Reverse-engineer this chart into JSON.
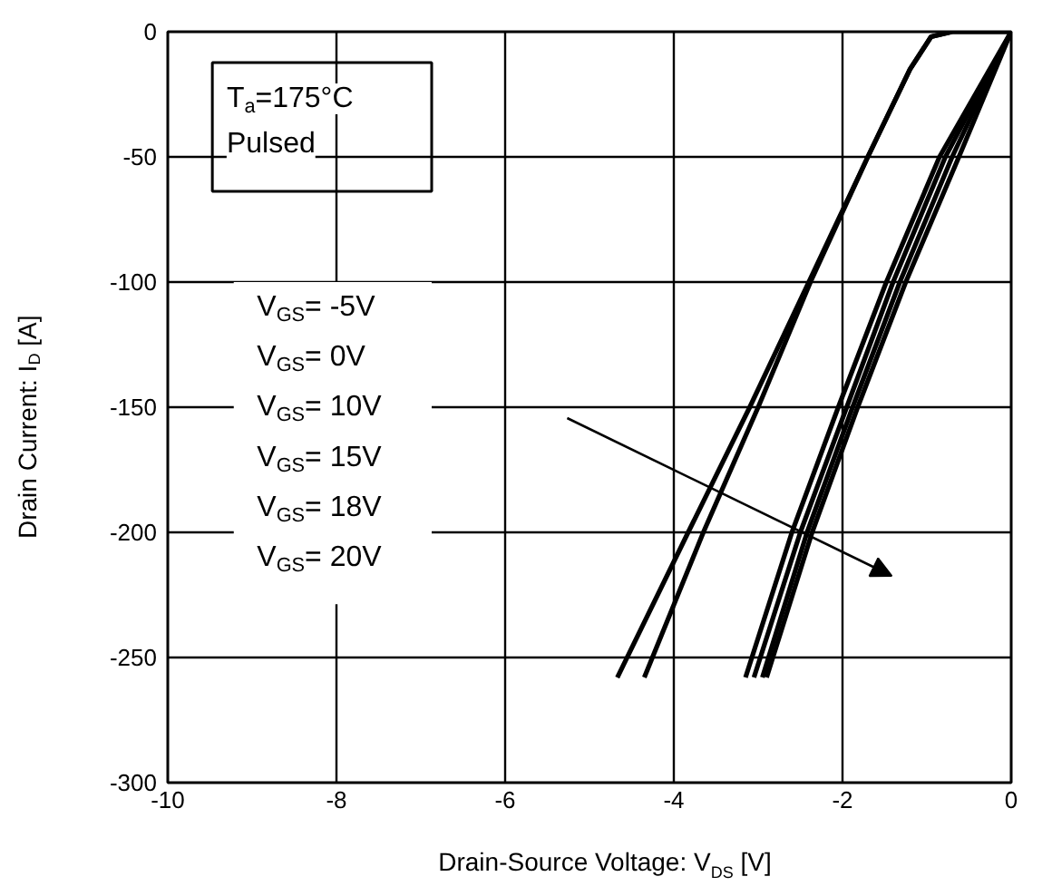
{
  "chart_data": {
    "type": "line",
    "xlabel": "Drain-Source Voltage: V$_{DS}$ [V]",
    "ylabel": "Drain Current: I$_{D}$ [A]",
    "xlim": [
      -10,
      0
    ],
    "ylim": [
      -300,
      0
    ],
    "xticks": [
      -10,
      -8,
      -6,
      -4,
      -2,
      0
    ],
    "yticks": [
      -300,
      -250,
      -200,
      -150,
      -100,
      -50,
      0
    ],
    "grid": true,
    "marker": "none",
    "line_style": "solid",
    "annotations": [
      "T$_{a}$=175°C",
      "Pulsed",
      "V$_{GS}$= -5V",
      "V$_{GS}$= 0V",
      "V$_{GS}$= 10V",
      "V$_{GS}$= 15V",
      "V$_{GS}$= 18V",
      "V$_{GS}$= 20V"
    ],
    "series": [
      {
        "color": "#000000",
        "x": [
          -4.67,
          -3.83,
          -3.1,
          -2.4,
          -1.7,
          -1.2,
          -0.95,
          -0.7,
          0
        ],
        "values": [
          -258,
          -200,
          -150,
          -100,
          -50,
          -15,
          -2,
          0,
          0
        ]
      },
      {
        "color": "#000000",
        "x": [
          -4.35,
          -3.65,
          -3.0,
          -2.38,
          -1.7,
          -1.2,
          -0.95,
          -0.7,
          0
        ],
        "values": [
          -258,
          -200,
          -150,
          -100,
          -50,
          -15,
          -2,
          0,
          0
        ]
      },
      {
        "color": "#000000",
        "x": [
          -3.15,
          -2.6,
          -2.05,
          -1.48,
          -0.85,
          0
        ],
        "values": [
          -258,
          -200,
          -150,
          -100,
          -50,
          0
        ]
      },
      {
        "color": "#000000",
        "x": [
          -3.05,
          -2.5,
          -1.95,
          -1.4,
          -0.78,
          0
        ],
        "values": [
          -258,
          -200,
          -150,
          -100,
          -50,
          0
        ]
      },
      {
        "color": "#000000",
        "x": [
          -2.95,
          -2.42,
          -1.88,
          -1.32,
          -0.7,
          0
        ],
        "values": [
          -258,
          -200,
          -150,
          -100,
          -50,
          0
        ]
      },
      {
        "color": "#000000",
        "x": [
          -2.9,
          -2.36,
          -1.82,
          -1.25,
          -0.62,
          0
        ],
        "values": [
          -258,
          -200,
          -150,
          -100,
          -50,
          0
        ]
      }
    ]
  }
}
